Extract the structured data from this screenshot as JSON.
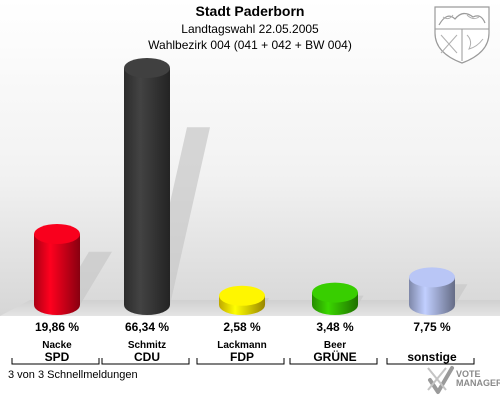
{
  "header": {
    "title": "Stadt Paderborn",
    "subtitle": "Landtagswahl 22.05.2005",
    "district": "Wahlbezirk 004 (041 + 042 + BW 004)"
  },
  "chart_data": {
    "type": "bar",
    "categories": [
      "SPD",
      "CDU",
      "FDP",
      "GRÜNE",
      "sonstige"
    ],
    "candidates": [
      "Nacke",
      "Schmitz",
      "Lackmann",
      "Beer",
      ""
    ],
    "values": [
      19.86,
      66.34,
      2.58,
      3.48,
      7.75
    ],
    "value_labels": [
      "19,86 %",
      "66,34 %",
      "2,58 %",
      "3,48 %",
      "7,75 %"
    ],
    "colors": [
      "#e2001a",
      "#3a3a3a",
      "#ffe000",
      "#33bb00",
      "#a8b4e0"
    ],
    "ylim": [
      0,
      66.34
    ]
  },
  "footer": {
    "status": "3 von 3 Schnellmeldungen",
    "logo_text": "VOTE MANAGER"
  },
  "icons": {
    "coat_of_arms": "nrw-coat-of-arms-icon",
    "logo": "vote-manager-logo-icon"
  }
}
